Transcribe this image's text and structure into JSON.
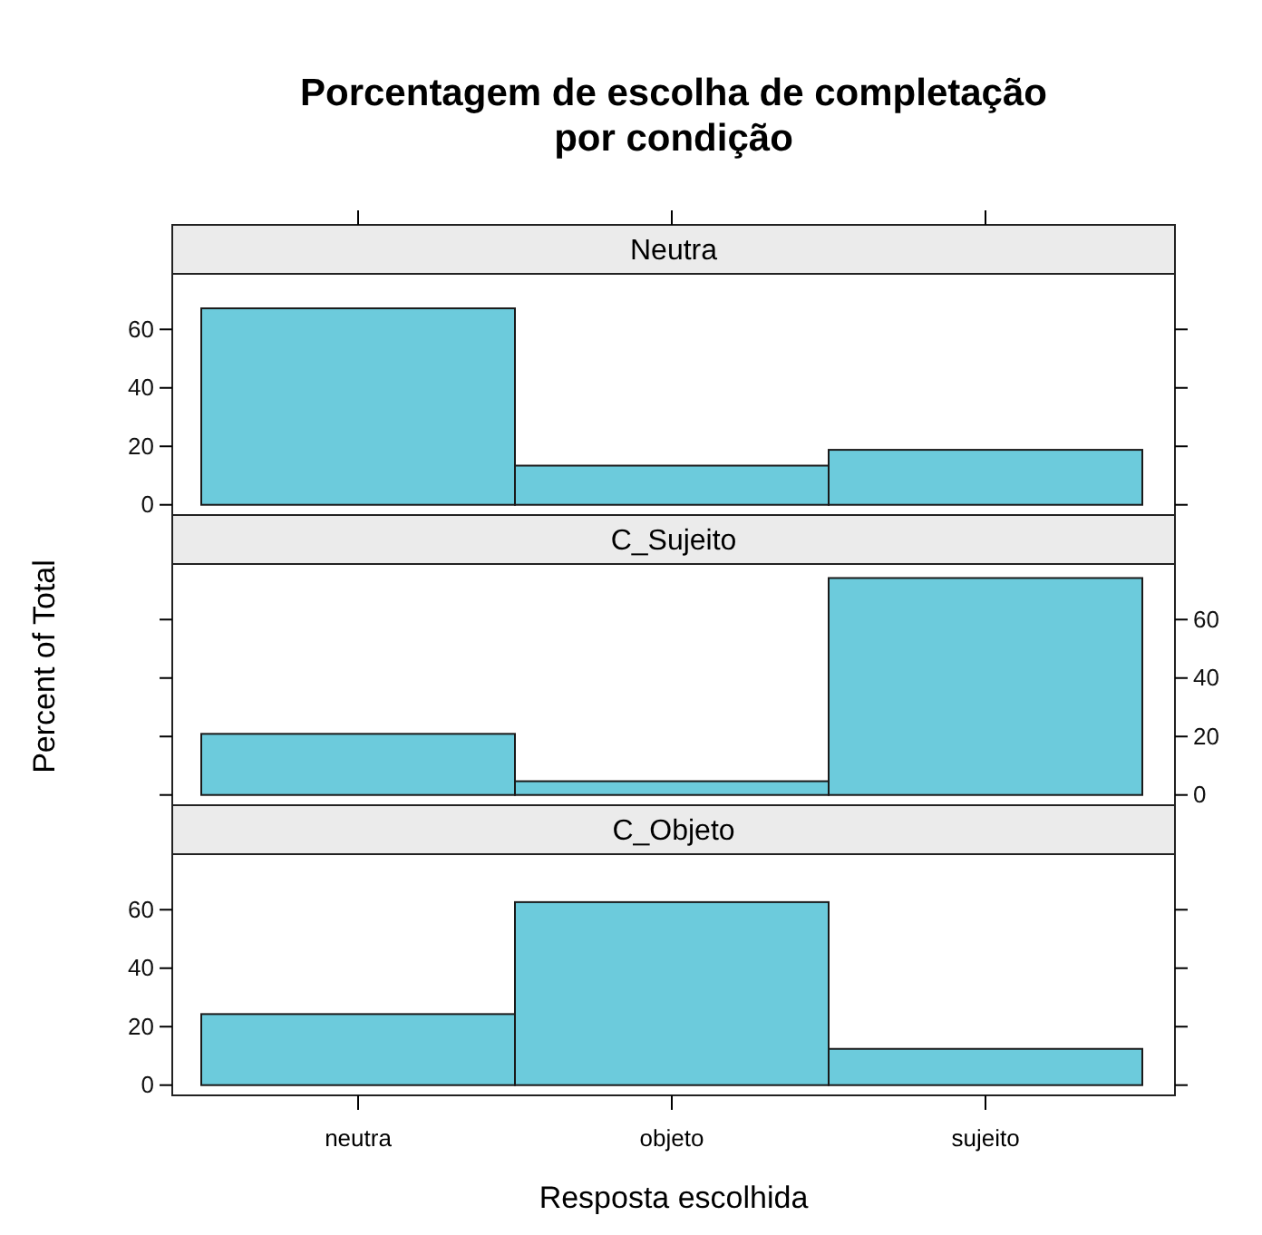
{
  "chart_data": [
    {
      "type": "bar",
      "title": "Porcentagem de escolha de completação por condição",
      "subtitle": "Neutra",
      "categories": [
        null,
        null,
        null
      ],
      "values": [
        67.2,
        13.4,
        18.8
      ],
      "color": "#6ccbdc",
      "ylim": [
        -3.5,
        79
      ],
      "yticks": [
        0,
        20,
        40,
        60
      ],
      "tick_labels": "y"
    },
    {
      "type": "bar",
      "subtitle": "C_Sujeito",
      "ylabel": "Percent of Total",
      "categories": [
        null,
        null,
        null
      ],
      "values": [
        20.9,
        4.7,
        74.2
      ],
      "color": "#6ccbdc",
      "ylim": [
        -3.5,
        79
      ],
      "yticks": [
        0,
        20,
        40,
        60
      ],
      "tick_labels": "y"
    },
    {
      "type": "bar",
      "subtitle": "C_Objeto",
      "xlabel": "Resposta escolhida",
      "categories": [
        "neutra",
        "objeto",
        "sujeito"
      ],
      "values": [
        24.3,
        62.6,
        12.4
      ],
      "color": "#6ccbdc",
      "ylim": [
        -3.5,
        79
      ],
      "yticks": [
        0,
        20,
        40,
        60
      ]
    }
  ]
}
